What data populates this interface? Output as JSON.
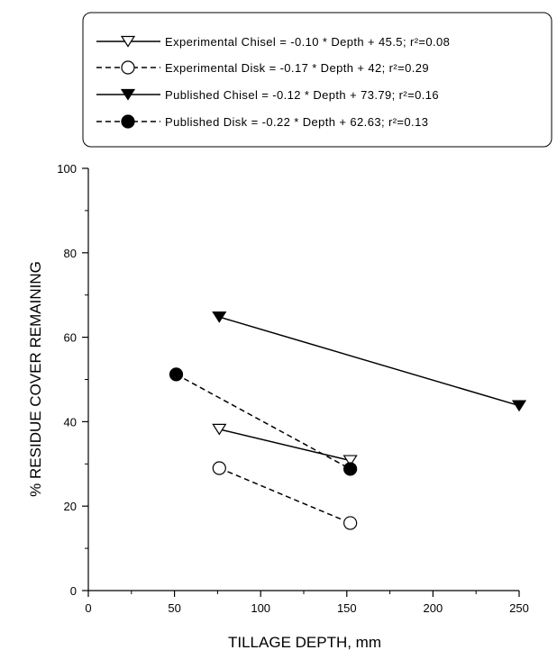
{
  "chart_data": {
    "type": "line",
    "xlabel": "TILLAGE DEPTH, mm",
    "ylabel": "% RESIDUE COVER REMAINING",
    "xlim": [
      0,
      250
    ],
    "ylim": [
      0,
      100
    ],
    "xticks": [
      0,
      50,
      100,
      150,
      200,
      250
    ],
    "yticks": [
      0,
      20,
      40,
      60,
      80,
      100
    ],
    "grid": false,
    "legend_position": "top-right",
    "series": [
      {
        "name": "Experimental Chisel",
        "legend_text": "Experimental Chisel = -0.10 * Depth + 45.5; r²=0.08",
        "marker": "triangle-down-open",
        "line": "solid",
        "x": [
          76,
          152
        ],
        "y": [
          38.2,
          30.8
        ]
      },
      {
        "name": "Experimental Disk",
        "legend_text": "Experimental Disk = -0.17 * Depth + 42; r²=0.29",
        "marker": "circle-open",
        "line": "dashed",
        "x": [
          76,
          152
        ],
        "y": [
          29,
          16
        ]
      },
      {
        "name": "Published Chisel",
        "legend_text": "Published Chisel = -0.12 * Depth + 73.79; r²=0.16",
        "marker": "triangle-down-filled",
        "line": "solid",
        "x": [
          76,
          250
        ],
        "y": [
          64.8,
          43.8
        ]
      },
      {
        "name": "Published Disk",
        "legend_text": "Published Disk = -0.22 * Depth + 62.63; r²=0.13",
        "marker": "circle-filled",
        "line": "dashed",
        "x": [
          51,
          152
        ],
        "y": [
          51.2,
          28.8
        ]
      }
    ]
  }
}
